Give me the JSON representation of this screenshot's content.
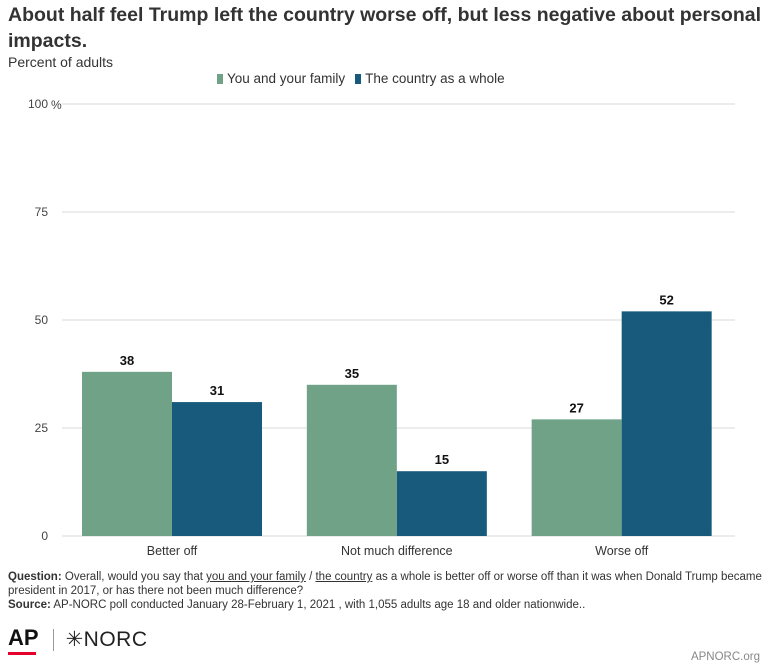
{
  "title": "About half feel Trump left the country worse off, but less negative about personal impacts.",
  "subtitle": "Percent of adults",
  "colors": {
    "family": "#6fa287",
    "country": "#185a7b",
    "grid": "#d9d9d9",
    "logo_red": "#e4002b"
  },
  "chart_data": {
    "type": "bar",
    "categories": [
      "Better off",
      "Not much difference",
      "Worse off"
    ],
    "series": [
      {
        "name": "You and your family",
        "values": [
          38,
          35,
          27
        ]
      },
      {
        "name": "The country as a whole",
        "values": [
          31,
          15,
          52
        ]
      }
    ],
    "ylim": [
      0,
      100
    ],
    "yticks": [
      0,
      25,
      50,
      75,
      100
    ],
    "ytick_labels": [
      "0",
      "25",
      "50",
      "75",
      "100"
    ],
    "y_unit": "%",
    "legend_position": "top",
    "grid": true
  },
  "footnote": {
    "question_label": "Question:",
    "question_pre": "Overall, would you say that",
    "question_u1": "you and your family",
    "question_sep": "/",
    "question_u2": "the country",
    "question_post": "as a whole is better off or worse off than it was when Donald Trump became president in 2017, or has there not been much difference?",
    "source_label": "Source:",
    "source_text": "AP-NORC poll conducted January 28-February 1, 2021 , with 1,055 adults age 18 and older nationwide.."
  },
  "logos": {
    "ap": "AP",
    "norc": "✳NORC"
  },
  "site": "APNORC.org"
}
